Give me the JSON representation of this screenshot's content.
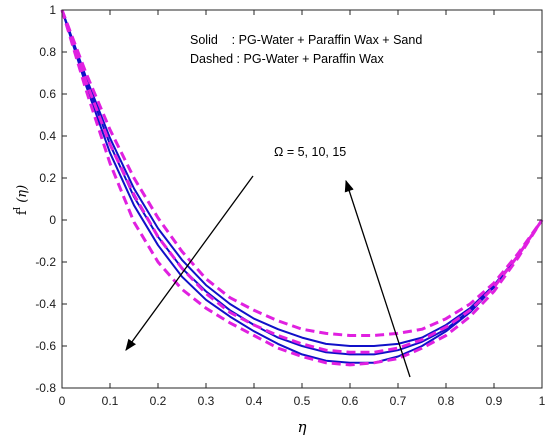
{
  "chart_data": {
    "type": "line",
    "title": "",
    "xlabel": "η",
    "ylabel": {
      "base": "f",
      "sup": "I",
      "arg": "(η)"
    },
    "xlim": [
      0,
      1
    ],
    "ylim": [
      -0.8,
      1
    ],
    "x_ticks": [
      0,
      0.1,
      0.2,
      0.3,
      0.4,
      0.5,
      0.6,
      0.7,
      0.8,
      0.9,
      1
    ],
    "y_ticks": [
      -0.8,
      -0.6,
      -0.4,
      -0.2,
      0,
      0.2,
      0.4,
      0.6,
      0.8,
      1
    ],
    "grid": false,
    "legend_text": [
      "Solid    : PG-Water + Paraffin Wax + Sand",
      "Dashed : PG-Water + Paraffin Wax"
    ],
    "annotations": {
      "omega_label": "Ω = 5, 10, 15"
    },
    "colors": {
      "solid": "#1010c8",
      "dashed": "#e020e0",
      "axis": "#262626"
    },
    "series": [
      {
        "style": "solid",
        "x": [
          0,
          0.05,
          0.1,
          0.15,
          0.2,
          0.25,
          0.3,
          0.35,
          0.4,
          0.45,
          0.5,
          0.55,
          0.6,
          0.65,
          0.7,
          0.75,
          0.8,
          0.85,
          0.9,
          0.95,
          1
        ],
        "y": [
          1,
          0.68,
          0.39,
          0.15,
          -0.04,
          -0.19,
          -0.31,
          -0.4,
          -0.47,
          -0.52,
          -0.56,
          -0.59,
          -0.6,
          -0.6,
          -0.59,
          -0.56,
          -0.5,
          -0.42,
          -0.31,
          -0.17,
          0
        ]
      },
      {
        "style": "solid",
        "x": [
          0,
          0.05,
          0.1,
          0.15,
          0.2,
          0.25,
          0.3,
          0.35,
          0.4,
          0.45,
          0.5,
          0.55,
          0.6,
          0.65,
          0.7,
          0.75,
          0.8,
          0.85,
          0.9,
          0.95,
          1
        ],
        "y": [
          1,
          0.66,
          0.36,
          0.11,
          -0.08,
          -0.23,
          -0.34,
          -0.43,
          -0.5,
          -0.56,
          -0.6,
          -0.63,
          -0.64,
          -0.64,
          -0.62,
          -0.58,
          -0.52,
          -0.43,
          -0.32,
          -0.17,
          0
        ]
      },
      {
        "style": "solid",
        "x": [
          0,
          0.05,
          0.1,
          0.15,
          0.2,
          0.25,
          0.3,
          0.35,
          0.4,
          0.45,
          0.5,
          0.55,
          0.6,
          0.65,
          0.7,
          0.75,
          0.8,
          0.85,
          0.9,
          0.95,
          1
        ],
        "y": [
          1,
          0.64,
          0.32,
          0.07,
          -0.12,
          -0.27,
          -0.38,
          -0.46,
          -0.53,
          -0.59,
          -0.64,
          -0.67,
          -0.68,
          -0.68,
          -0.65,
          -0.6,
          -0.53,
          -0.44,
          -0.32,
          -0.17,
          0
        ]
      },
      {
        "style": "dashed",
        "x": [
          0,
          0.05,
          0.1,
          0.15,
          0.2,
          0.25,
          0.3,
          0.35,
          0.4,
          0.45,
          0.5,
          0.55,
          0.6,
          0.65,
          0.7,
          0.75,
          0.8,
          0.85,
          0.9,
          0.95,
          1
        ],
        "y": [
          1,
          0.7,
          0.43,
          0.2,
          0.01,
          -0.15,
          -0.28,
          -0.37,
          -0.43,
          -0.48,
          -0.52,
          -0.54,
          -0.55,
          -0.55,
          -0.54,
          -0.52,
          -0.47,
          -0.4,
          -0.3,
          -0.16,
          0
        ]
      },
      {
        "style": "dashed",
        "x": [
          0,
          0.05,
          0.1,
          0.15,
          0.2,
          0.25,
          0.3,
          0.35,
          0.4,
          0.45,
          0.5,
          0.55,
          0.6,
          0.65,
          0.7,
          0.75,
          0.8,
          0.85,
          0.9,
          0.95,
          1
        ],
        "y": [
          1,
          0.66,
          0.36,
          0.12,
          -0.08,
          -0.23,
          -0.35,
          -0.44,
          -0.5,
          -0.55,
          -0.59,
          -0.62,
          -0.63,
          -0.63,
          -0.61,
          -0.57,
          -0.51,
          -0.43,
          -0.32,
          -0.17,
          0
        ]
      },
      {
        "style": "dashed",
        "x": [
          0,
          0.05,
          0.1,
          0.15,
          0.2,
          0.25,
          0.3,
          0.35,
          0.4,
          0.45,
          0.5,
          0.55,
          0.6,
          0.65,
          0.7,
          0.75,
          0.8,
          0.85,
          0.9,
          0.95,
          1
        ],
        "y": [
          1,
          0.62,
          0.27,
          -0.01,
          -0.2,
          -0.33,
          -0.42,
          -0.49,
          -0.55,
          -0.61,
          -0.65,
          -0.68,
          -0.69,
          -0.68,
          -0.66,
          -0.61,
          -0.55,
          -0.46,
          -0.34,
          -0.18,
          0
        ]
      }
    ]
  }
}
